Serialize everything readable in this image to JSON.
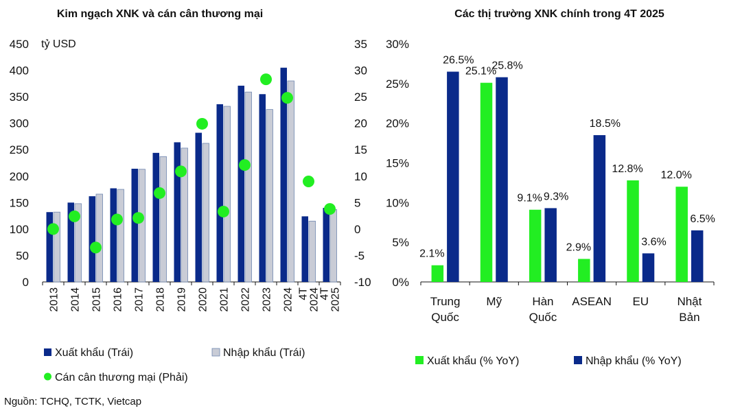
{
  "colors": {
    "export_bar": "#0a2a8a",
    "import_bar": "#c9ccd6",
    "import_bar_edge": "#6f86b0",
    "balance_dot": "#22ee22",
    "left_export": "#22ee22",
    "left_import": "#0a2a8a"
  },
  "source": "Nguồn: TCHQ, TCTK, Vietcap",
  "chart_data": [
    {
      "type": "bar",
      "title": "Kim ngạch XNK và cán cân thương mại",
      "unit_label": "tỷ USD",
      "categories": [
        "2013",
        "2014",
        "2015",
        "2016",
        "2017",
        "2018",
        "2019",
        "2020",
        "2021",
        "2022",
        "2023",
        "2024",
        "4T 2024",
        "4T 2025"
      ],
      "series": [
        {
          "name": "Xuất khẩu (Trái)",
          "axis": "left",
          "kind": "bar",
          "values": [
            132,
            150,
            162,
            177,
            214,
            244,
            264,
            282,
            336,
            371,
            355,
            405,
            124,
            140
          ]
        },
        {
          "name": "Nhập khẩu (Trái)",
          "axis": "left",
          "kind": "bar",
          "values": [
            132,
            148,
            166,
            175,
            213,
            237,
            253,
            262,
            332,
            359,
            326,
            380,
            115,
            137
          ]
        },
        {
          "name": "Cán cân thương mại (Phải)",
          "axis": "right",
          "kind": "scatter",
          "values": [
            0.0,
            2.4,
            -3.5,
            1.8,
            2.1,
            6.8,
            10.9,
            19.9,
            3.3,
            12.1,
            28.3,
            24.8,
            9.0,
            3.8
          ]
        }
      ],
      "ylim_left": [
        0,
        450
      ],
      "yticks_left": [
        0,
        50,
        100,
        150,
        200,
        250,
        300,
        350,
        400,
        450
      ],
      "ylim_right": [
        -10,
        35
      ],
      "yticks_right": [
        -10,
        -5,
        0,
        5,
        10,
        15,
        20,
        25,
        30,
        35
      ],
      "legend": "bottom"
    },
    {
      "type": "bar",
      "title": "Các thị trường XNK chính trong 4T 2025",
      "categories": [
        [
          "Trung",
          "Quốc"
        ],
        [
          "Mỹ"
        ],
        [
          "Hàn",
          "Quốc"
        ],
        [
          "ASEAN"
        ],
        [
          "EU"
        ],
        [
          "Nhật",
          "Bản"
        ]
      ],
      "series": [
        {
          "name": "Xuất khẩu (% YoY)",
          "values": [
            2.1,
            25.1,
            9.1,
            2.9,
            12.8,
            12.0
          ],
          "labels": [
            "2.1%",
            "25.1%",
            "9.1%",
            "2.9%",
            "12.8%",
            "12.0%"
          ]
        },
        {
          "name": "Nhập khẩu (% YoY)",
          "values": [
            26.5,
            25.8,
            9.3,
            18.5,
            3.6,
            6.5
          ],
          "labels": [
            "26.5%",
            "25.8%",
            "9.3%",
            "18.5%",
            "3.6%",
            "6.5%"
          ]
        }
      ],
      "ylim": [
        0,
        30
      ],
      "yticks": [
        "0%",
        "5%",
        "10%",
        "15%",
        "20%",
        "25%",
        "30%"
      ],
      "legend": "bottom"
    }
  ]
}
